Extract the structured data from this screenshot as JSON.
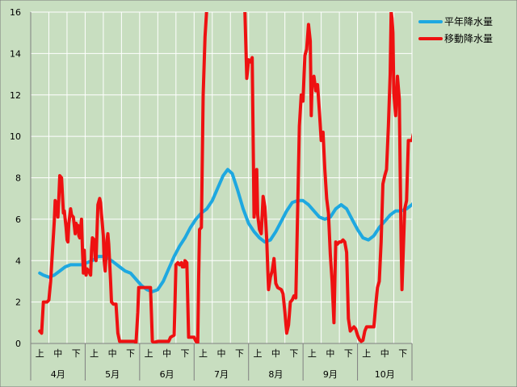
{
  "chart_data": {
    "type": "line",
    "ylim": [
      0,
      16
    ],
    "yticks": [
      "0",
      "2",
      "4",
      "6",
      "8",
      "10",
      "12",
      "14",
      "16"
    ],
    "months": [
      "4月",
      "5月",
      "6月",
      "7月",
      "8月",
      "9月",
      "10月"
    ],
    "dekads": [
      "上",
      "中",
      "下"
    ],
    "grid": true,
    "legend_position": "top-right",
    "series": [
      {
        "name": "平年降水量",
        "color": "#1ea8e0",
        "points": [
          [
            0,
            3.4
          ],
          [
            0.2,
            3.3
          ],
          [
            0.5,
            3.2
          ],
          [
            0.8,
            3.3
          ],
          [
            1.1,
            3.5
          ],
          [
            1.4,
            3.7
          ],
          [
            1.7,
            3.8
          ],
          [
            2.0,
            3.8
          ],
          [
            2.3,
            3.8
          ],
          [
            2.6,
            3.9
          ],
          [
            2.9,
            4.0
          ],
          [
            3.2,
            4.2
          ],
          [
            3.5,
            4.2
          ],
          [
            3.8,
            4.1
          ],
          [
            4.1,
            3.9
          ],
          [
            4.4,
            3.7
          ],
          [
            4.7,
            3.5
          ],
          [
            5.0,
            3.4
          ],
          [
            5.3,
            3.1
          ],
          [
            5.6,
            2.8
          ],
          [
            5.9,
            2.6
          ],
          [
            6.2,
            2.5
          ],
          [
            6.5,
            2.6
          ],
          [
            6.8,
            3.0
          ],
          [
            7.1,
            3.6
          ],
          [
            7.4,
            4.2
          ],
          [
            7.7,
            4.7
          ],
          [
            8.0,
            5.1
          ],
          [
            8.3,
            5.6
          ],
          [
            8.6,
            6.0
          ],
          [
            8.9,
            6.3
          ],
          [
            9.2,
            6.5
          ],
          [
            9.5,
            6.9
          ],
          [
            9.8,
            7.5
          ],
          [
            10.1,
            8.1
          ],
          [
            10.35,
            8.4
          ],
          [
            10.6,
            8.2
          ],
          [
            10.9,
            7.4
          ],
          [
            11.2,
            6.5
          ],
          [
            11.5,
            5.8
          ],
          [
            11.8,
            5.4
          ],
          [
            12.1,
            5.1
          ],
          [
            12.4,
            4.9
          ],
          [
            12.7,
            5.0
          ],
          [
            13.0,
            5.4
          ],
          [
            13.3,
            5.9
          ],
          [
            13.6,
            6.4
          ],
          [
            13.9,
            6.8
          ],
          [
            14.2,
            6.9
          ],
          [
            14.5,
            6.9
          ],
          [
            14.8,
            6.7
          ],
          [
            15.1,
            6.4
          ],
          [
            15.4,
            6.1
          ],
          [
            15.7,
            6.0
          ],
          [
            16.0,
            6.1
          ],
          [
            16.3,
            6.5
          ],
          [
            16.6,
            6.7
          ],
          [
            16.9,
            6.5
          ],
          [
            17.2,
            6.0
          ],
          [
            17.5,
            5.5
          ],
          [
            17.8,
            5.1
          ],
          [
            18.1,
            5.0
          ],
          [
            18.4,
            5.2
          ],
          [
            18.7,
            5.6
          ],
          [
            19.0,
            5.9
          ],
          [
            19.3,
            6.2
          ],
          [
            19.6,
            6.4
          ],
          [
            19.9,
            6.4
          ],
          [
            20.2,
            6.5
          ],
          [
            20.5,
            6.7
          ],
          [
            20.8,
            7.0
          ],
          [
            21.1,
            7.3
          ],
          [
            21.4,
            7.5
          ],
          [
            21.6,
            7.4
          ]
        ]
      },
      {
        "name": "移動降水量",
        "color": "#ee1111",
        "points": [
          [
            0,
            0.6
          ],
          [
            0.1,
            0.5
          ],
          [
            0.2,
            2.0
          ],
          [
            0.4,
            2.0
          ],
          [
            0.5,
            2.1
          ],
          [
            0.6,
            3.0
          ],
          [
            0.7,
            4.5
          ],
          [
            0.8,
            5.9
          ],
          [
            0.85,
            6.9
          ],
          [
            0.9,
            6.8
          ],
          [
            1.0,
            6.1
          ],
          [
            1.05,
            7.0
          ],
          [
            1.1,
            8.1
          ],
          [
            1.2,
            8.0
          ],
          [
            1.3,
            6.3
          ],
          [
            1.35,
            6.4
          ],
          [
            1.45,
            5.6
          ],
          [
            1.5,
            5.0
          ],
          [
            1.55,
            4.9
          ],
          [
            1.6,
            5.8
          ],
          [
            1.7,
            6.5
          ],
          [
            1.75,
            6.2
          ],
          [
            1.85,
            6.1
          ],
          [
            1.95,
            5.3
          ],
          [
            2.0,
            5.8
          ],
          [
            2.05,
            5.6
          ],
          [
            2.1,
            5.7
          ],
          [
            2.15,
            5.2
          ],
          [
            2.2,
            5.1
          ],
          [
            2.3,
            6.0
          ],
          [
            2.35,
            4.5
          ],
          [
            2.4,
            3.4
          ],
          [
            2.45,
            4.5
          ],
          [
            2.5,
            3.5
          ],
          [
            2.55,
            3.3
          ],
          [
            2.6,
            3.6
          ],
          [
            2.7,
            3.5
          ],
          [
            2.75,
            3.4
          ],
          [
            2.8,
            3.3
          ],
          [
            2.85,
            4.5
          ],
          [
            2.9,
            5.1
          ],
          [
            3.0,
            5.0
          ],
          [
            3.05,
            4.1
          ],
          [
            3.1,
            4.0
          ],
          [
            3.2,
            6.7
          ],
          [
            3.3,
            7.0
          ],
          [
            3.35,
            6.8
          ],
          [
            3.4,
            6.2
          ],
          [
            3.5,
            5.2
          ],
          [
            3.55,
            4.0
          ],
          [
            3.6,
            3.5
          ],
          [
            3.7,
            5.0
          ],
          [
            3.75,
            5.3
          ],
          [
            3.8,
            4.8
          ],
          [
            3.9,
            3.0
          ],
          [
            3.95,
            2.0
          ],
          [
            4.05,
            1.9
          ],
          [
            4.2,
            1.9
          ],
          [
            4.3,
            0.5
          ],
          [
            4.4,
            0.1
          ],
          [
            4.6,
            0.1
          ],
          [
            4.8,
            0.1
          ],
          [
            5.0,
            0.1
          ],
          [
            5.2,
            0.1
          ],
          [
            5.3,
            0.05
          ],
          [
            5.4,
            1.5
          ],
          [
            5.45,
            2.7
          ],
          [
            5.6,
            2.7
          ],
          [
            5.9,
            2.7
          ],
          [
            6.1,
            2.7
          ],
          [
            6.15,
            1.4
          ],
          [
            6.2,
            0.1
          ],
          [
            6.3,
            0.05
          ],
          [
            6.5,
            0.1
          ],
          [
            6.8,
            0.1
          ],
          [
            7.1,
            0.1
          ],
          [
            7.2,
            0.3
          ],
          [
            7.4,
            0.4
          ],
          [
            7.5,
            3.8
          ],
          [
            7.6,
            3.9
          ],
          [
            7.7,
            3.8
          ],
          [
            7.8,
            3.9
          ],
          [
            7.85,
            3.7
          ],
          [
            7.95,
            3.7
          ],
          [
            8.0,
            4.0
          ],
          [
            8.1,
            3.9
          ],
          [
            8.2,
            0.3
          ],
          [
            8.3,
            0.3
          ],
          [
            8.5,
            0.3
          ],
          [
            8.6,
            0.1
          ],
          [
            8.7,
            0.05
          ],
          [
            8.75,
            3.1
          ],
          [
            8.8,
            5.5
          ],
          [
            8.9,
            5.6
          ],
          [
            9.0,
            12.0
          ],
          [
            9.1,
            14.8
          ],
          [
            9.2,
            16.2
          ],
          [
            9.3,
            17.0
          ],
          [
            9.5,
            17.0
          ],
          [
            9.7,
            17.0
          ],
          [
            9.9,
            17.0
          ],
          [
            10.1,
            17.0
          ],
          [
            10.3,
            17.0
          ],
          [
            10.6,
            17.0
          ],
          [
            10.8,
            17.0
          ],
          [
            11.0,
            17.0
          ],
          [
            11.2,
            17.0
          ],
          [
            11.3,
            16.0
          ],
          [
            11.4,
            12.8
          ],
          [
            11.5,
            13.7
          ],
          [
            11.6,
            13.6
          ],
          [
            11.7,
            13.8
          ],
          [
            11.8,
            6.1
          ],
          [
            11.9,
            7.0
          ],
          [
            11.95,
            8.4
          ],
          [
            12.0,
            6.2
          ],
          [
            12.1,
            5.5
          ],
          [
            12.2,
            5.3
          ],
          [
            12.3,
            7.1
          ],
          [
            12.4,
            6.6
          ],
          [
            12.5,
            5.0
          ],
          [
            12.6,
            2.6
          ],
          [
            12.7,
            3.2
          ],
          [
            12.8,
            3.5
          ],
          [
            12.9,
            4.1
          ],
          [
            13.0,
            2.9
          ],
          [
            13.1,
            2.7
          ],
          [
            13.3,
            2.6
          ],
          [
            13.4,
            2.4
          ],
          [
            13.5,
            1.5
          ],
          [
            13.6,
            0.5
          ],
          [
            13.7,
            0.9
          ],
          [
            13.8,
            2.0
          ],
          [
            13.9,
            2.1
          ],
          [
            14.0,
            2.3
          ],
          [
            14.1,
            2.2
          ],
          [
            14.2,
            6.3
          ],
          [
            14.3,
            10.5
          ],
          [
            14.4,
            12.0
          ],
          [
            14.5,
            11.7
          ],
          [
            14.6,
            13.9
          ],
          [
            14.7,
            14.2
          ],
          [
            14.8,
            15.4
          ],
          [
            14.9,
            14.6
          ],
          [
            14.95,
            11.0
          ],
          [
            15.0,
            12.7
          ],
          [
            15.1,
            12.9
          ],
          [
            15.2,
            12.2
          ],
          [
            15.3,
            12.5
          ],
          [
            15.4,
            11.2
          ],
          [
            15.5,
            9.8
          ],
          [
            15.6,
            10.2
          ],
          [
            15.7,
            8.4
          ],
          [
            15.8,
            7.0
          ],
          [
            15.9,
            6.3
          ],
          [
            16.0,
            4.3
          ],
          [
            16.1,
            3.0
          ],
          [
            16.2,
            1.0
          ],
          [
            16.3,
            4.9
          ],
          [
            16.4,
            4.8
          ],
          [
            16.5,
            4.9
          ],
          [
            16.6,
            4.9
          ],
          [
            16.7,
            5.0
          ],
          [
            16.8,
            4.9
          ],
          [
            16.9,
            4.4
          ],
          [
            17.0,
            1.2
          ],
          [
            17.1,
            0.6
          ],
          [
            17.2,
            0.7
          ],
          [
            17.3,
            0.8
          ],
          [
            17.4,
            0.7
          ],
          [
            17.5,
            0.4
          ],
          [
            17.6,
            0.2
          ],
          [
            17.7,
            0.1
          ],
          [
            17.8,
            0.15
          ],
          [
            17.9,
            0.6
          ],
          [
            18.0,
            0.8
          ],
          [
            18.2,
            0.8
          ],
          [
            18.4,
            0.8
          ],
          [
            18.5,
            1.8
          ],
          [
            18.6,
            2.7
          ],
          [
            18.7,
            3.0
          ],
          [
            18.8,
            4.9
          ],
          [
            18.9,
            7.7
          ],
          [
            19.0,
            8.1
          ],
          [
            19.1,
            8.4
          ],
          [
            19.2,
            10.5
          ],
          [
            19.3,
            13.0
          ],
          [
            19.35,
            16.0
          ],
          [
            19.4,
            15.7
          ],
          [
            19.45,
            15.0
          ],
          [
            19.5,
            12.1
          ],
          [
            19.6,
            11.0
          ],
          [
            19.7,
            12.9
          ],
          [
            19.8,
            11.8
          ],
          [
            19.85,
            8.3
          ],
          [
            19.9,
            5.0
          ],
          [
            19.95,
            2.6
          ],
          [
            20.0,
            4.0
          ],
          [
            20.1,
            6.5
          ],
          [
            20.2,
            6.9
          ],
          [
            20.3,
            9.8
          ],
          [
            20.4,
            9.8
          ],
          [
            20.5,
            9.8
          ],
          [
            20.6,
            10.2
          ],
          [
            20.7,
            11.7
          ]
        ]
      }
    ]
  }
}
